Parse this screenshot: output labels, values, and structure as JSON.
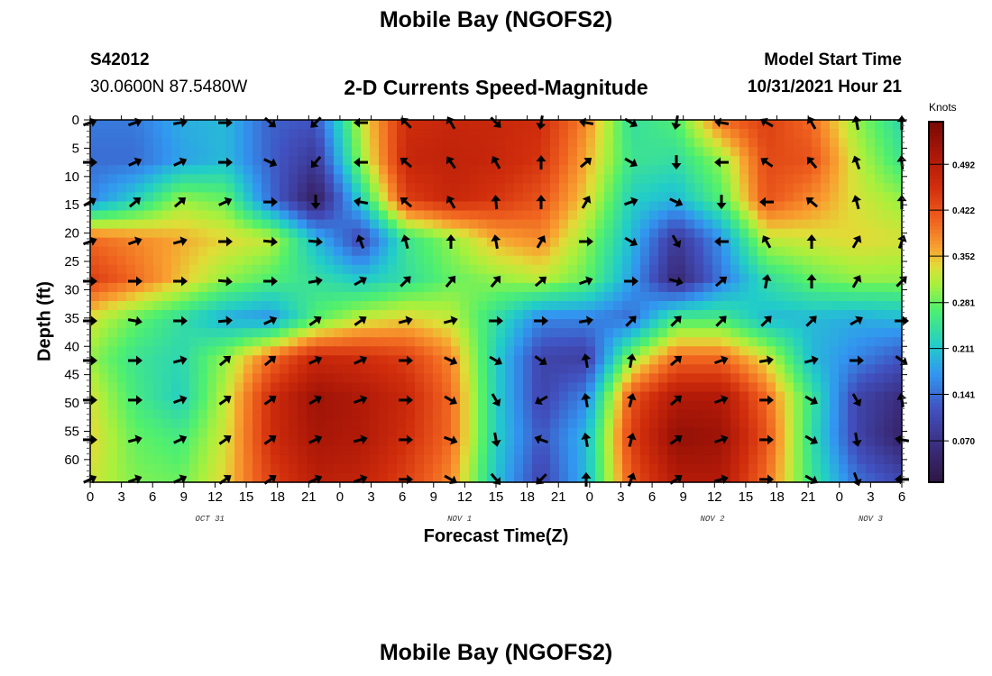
{
  "header": {
    "title": "Mobile Bay (NGOFS2)",
    "station_id": "S42012",
    "coordinates": "30.0600N  87.5480W",
    "subtitle": "2-D Currents Speed-Magnitude",
    "model_start_label": "Model Start Time",
    "model_start_value": "10/31/2021 Hour 21",
    "footer_title": "Mobile Bay (NGOFS2)"
  },
  "chart_data": {
    "type": "heatmap",
    "title": "2-D Currents Speed-Magnitude",
    "xlabel": "Forecast Time(Z)",
    "ylabel": "Depth (ft)",
    "colorbar_label": "Knots",
    "colorbar_ticks": [
      "0.070",
      "0.141",
      "0.211",
      "0.281",
      "0.352",
      "0.422",
      "0.492"
    ],
    "colorbar_tick_values": [
      0.07,
      0.141,
      0.211,
      0.281,
      0.352,
      0.422,
      0.492
    ],
    "vlim": [
      0.007,
      0.557
    ],
    "xlim": [
      0,
      78
    ],
    "ylim": [
      0,
      64
    ],
    "x_tick_labels": [
      "0",
      "3",
      "6",
      "9",
      "12",
      "15",
      "18",
      "21",
      "0",
      "3",
      "6",
      "9",
      "12",
      "15",
      "18",
      "21",
      "0",
      "3",
      "6",
      "9",
      "12",
      "15",
      "18",
      "21",
      "0",
      "3",
      "6"
    ],
    "y_tick_labels": [
      "0",
      "5",
      "10",
      "15",
      "20",
      "25",
      "30",
      "35",
      "40",
      "45",
      "50",
      "55",
      "60"
    ],
    "date_labels": [
      {
        "text": "OCT 31",
        "hour": 11.5
      },
      {
        "text": "NOV 1",
        "hour": 35.5
      },
      {
        "text": "NOV 2",
        "hour": 59.8
      },
      {
        "text": "NOV 3",
        "hour": 75
      }
    ],
    "depths_ft": [
      0,
      7,
      14,
      21,
      28,
      35,
      42,
      49,
      56,
      63
    ],
    "hours": [
      0,
      4.33,
      8.67,
      13,
      17.33,
      21.67,
      26,
      30.33,
      34.67,
      39,
      43.33,
      47.67,
      52,
      56.33,
      60.67,
      65,
      69.33,
      73.67,
      78
    ],
    "speed_knots": [
      [
        0.15,
        0.15,
        0.19,
        0.2,
        0.13,
        0.12,
        0.32,
        0.46,
        0.47,
        0.47,
        0.46,
        0.38,
        0.24,
        0.27,
        0.4,
        0.44,
        0.4,
        0.3,
        0.23
      ],
      [
        0.14,
        0.14,
        0.18,
        0.2,
        0.13,
        0.08,
        0.3,
        0.47,
        0.48,
        0.47,
        0.45,
        0.36,
        0.25,
        0.24,
        0.3,
        0.43,
        0.42,
        0.32,
        0.25
      ],
      [
        0.16,
        0.22,
        0.3,
        0.28,
        0.14,
        0.03,
        0.22,
        0.44,
        0.47,
        0.45,
        0.42,
        0.34,
        0.22,
        0.2,
        0.27,
        0.42,
        0.38,
        0.33,
        0.3
      ],
      [
        0.4,
        0.38,
        0.36,
        0.34,
        0.32,
        0.2,
        0.1,
        0.25,
        0.3,
        0.36,
        0.38,
        0.3,
        0.2,
        0.08,
        0.17,
        0.32,
        0.33,
        0.34,
        0.33
      ],
      [
        0.44,
        0.4,
        0.35,
        0.3,
        0.27,
        0.24,
        0.21,
        0.24,
        0.28,
        0.3,
        0.32,
        0.28,
        0.18,
        0.05,
        0.15,
        0.24,
        0.28,
        0.3,
        0.3
      ],
      [
        0.33,
        0.28,
        0.24,
        0.19,
        0.17,
        0.27,
        0.32,
        0.34,
        0.32,
        0.24,
        0.16,
        0.16,
        0.14,
        0.26,
        0.26,
        0.2,
        0.2,
        0.19,
        0.2
      ],
      [
        0.3,
        0.25,
        0.23,
        0.3,
        0.4,
        0.47,
        0.46,
        0.44,
        0.38,
        0.22,
        0.1,
        0.09,
        0.3,
        0.4,
        0.4,
        0.33,
        0.2,
        0.16,
        0.12
      ],
      [
        0.33,
        0.26,
        0.22,
        0.32,
        0.46,
        0.52,
        0.5,
        0.47,
        0.4,
        0.22,
        0.1,
        0.16,
        0.42,
        0.5,
        0.5,
        0.4,
        0.25,
        0.1,
        0.06
      ],
      [
        0.34,
        0.28,
        0.26,
        0.33,
        0.46,
        0.51,
        0.5,
        0.46,
        0.4,
        0.22,
        0.12,
        0.2,
        0.44,
        0.53,
        0.52,
        0.42,
        0.24,
        0.1,
        0.04
      ],
      [
        0.33,
        0.29,
        0.28,
        0.34,
        0.44,
        0.49,
        0.48,
        0.44,
        0.38,
        0.21,
        0.1,
        0.2,
        0.42,
        0.5,
        0.5,
        0.4,
        0.25,
        0.14,
        0.1
      ]
    ],
    "direction_deg_ccw_from_east": [
      [
        20,
        20,
        10,
        0,
        -40,
        -135,
        180,
        135,
        120,
        -45,
        -100,
        170,
        -30,
        -100,
        170,
        150,
        120,
        100,
        90
      ],
      [
        0,
        25,
        25,
        0,
        -25,
        -130,
        180,
        140,
        125,
        120,
        90,
        40,
        -30,
        -90,
        180,
        145,
        130,
        110,
        95
      ],
      [
        30,
        40,
        40,
        25,
        0,
        -90,
        170,
        140,
        120,
        95,
        90,
        60,
        20,
        -25,
        -90,
        180,
        140,
        105,
        90
      ],
      [
        20,
        20,
        15,
        0,
        -5,
        -5,
        110,
        105,
        90,
        100,
        60,
        0,
        -30,
        -60,
        180,
        120,
        90,
        60,
        70
      ],
      [
        0,
        0,
        0,
        -5,
        0,
        10,
        30,
        45,
        50,
        50,
        40,
        20,
        0,
        -15,
        40,
        80,
        90,
        60,
        45
      ],
      [
        0,
        -10,
        0,
        5,
        25,
        35,
        35,
        15,
        15,
        0,
        0,
        10,
        45,
        45,
        45,
        45,
        45,
        30,
        0
      ],
      [
        0,
        0,
        15,
        40,
        40,
        25,
        25,
        0,
        -25,
        -30,
        -35,
        100,
        80,
        40,
        20,
        10,
        15,
        0,
        -35
      ],
      [
        0,
        0,
        20,
        35,
        35,
        30,
        20,
        0,
        -30,
        -60,
        -150,
        100,
        75,
        40,
        20,
        0,
        -30,
        -60,
        100
      ],
      [
        0,
        15,
        25,
        35,
        35,
        25,
        15,
        0,
        -20,
        -80,
        160,
        100,
        75,
        35,
        20,
        0,
        -30,
        -80,
        170
      ],
      [
        25,
        20,
        25,
        35,
        35,
        25,
        20,
        0,
        -30,
        -50,
        -135,
        90,
        70,
        35,
        15,
        0,
        -30,
        -70,
        180
      ]
    ]
  }
}
